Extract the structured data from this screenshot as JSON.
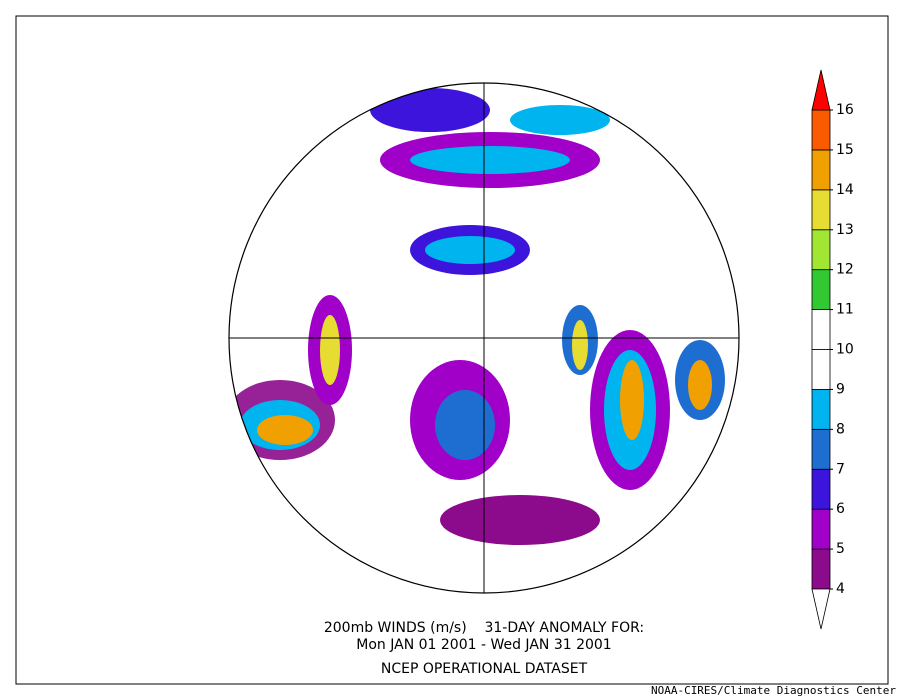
{
  "colorbar": {
    "levels": [
      4,
      5,
      6,
      7,
      8,
      9,
      10,
      11,
      12,
      13,
      14,
      15,
      16
    ],
    "colors": [
      "#8c0a8c",
      "#a000c8",
      "#3c14dc",
      "#1e6ed2",
      "#00b4f0",
      "#ffffff",
      "#ffffff",
      "#32c832",
      "#a0e632",
      "#e6dc32",
      "#f0a000",
      "#fa5a00"
    ],
    "under_color": "#ffffff",
    "over_color": "#ff0000"
  },
  "caption": {
    "line1": "200mb WINDS (m/s)    31-DAY ANOMALY FOR:",
    "line2": "Mon JAN 01 2001 - Wed JAN 31 2001",
    "line3": "NCEP OPERATIONAL DATASET"
  },
  "credit": "NOAA-CIRES/Climate Diagnostics Center"
}
